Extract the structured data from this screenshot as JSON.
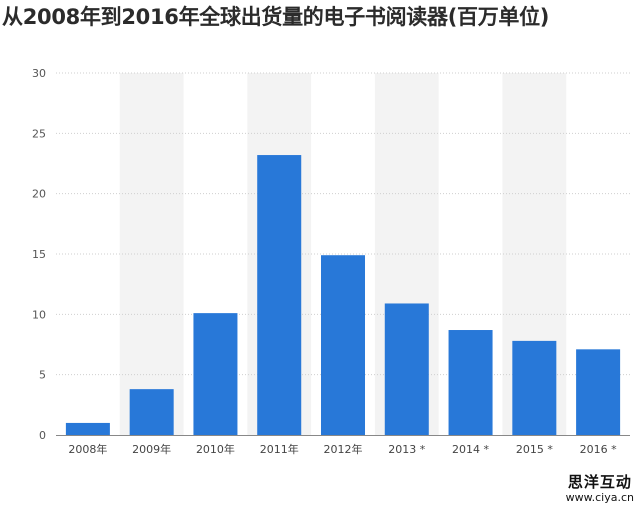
{
  "title": "从2008年到2016年全球出货量的电子书阅读器(百万单位)",
  "chart_data": {
    "type": "bar",
    "categories": [
      "2008年",
      "2009年",
      "2010年",
      "2011年",
      "2012年",
      "2013 *",
      "2014 *",
      "2015 *",
      "2016 *"
    ],
    "values": [
      1.0,
      3.8,
      10.1,
      23.2,
      14.9,
      10.9,
      8.7,
      7.8,
      7.1
    ],
    "ylim": [
      0,
      30
    ],
    "yticks": [
      0,
      5,
      10,
      15,
      20,
      25,
      30
    ],
    "grid": true,
    "bar_color": "#2878d8",
    "band_color": "#f3f3f3"
  },
  "watermark": {
    "text": "思洋互动",
    "url": "www.ciya.cn"
  }
}
